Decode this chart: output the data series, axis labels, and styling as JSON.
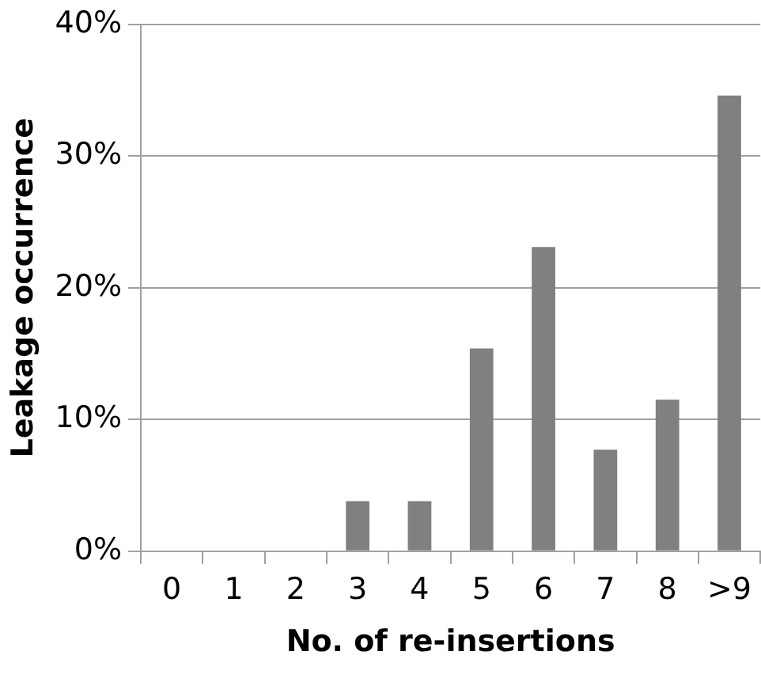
{
  "chart_data": {
    "type": "bar",
    "xlabel": "No. of re-insertions",
    "ylabel": "Leakage occurrence",
    "categories": [
      "0",
      "1",
      "2",
      "3",
      "4",
      "5",
      "6",
      "7",
      "8",
      ">9"
    ],
    "values": [
      0,
      0,
      0,
      3.8,
      3.8,
      15.4,
      23.1,
      7.7,
      11.5,
      34.6
    ],
    "color": "#808080",
    "ylim": [
      0,
      40
    ],
    "yticks": [
      {
        "value": 0,
        "label": "0%"
      },
      {
        "value": 10,
        "label": "10%"
      },
      {
        "value": 20,
        "label": "20%"
      },
      {
        "value": 30,
        "label": "30%"
      },
      {
        "value": 40,
        "label": "40%"
      }
    ],
    "grid": "y",
    "legend": false
  }
}
